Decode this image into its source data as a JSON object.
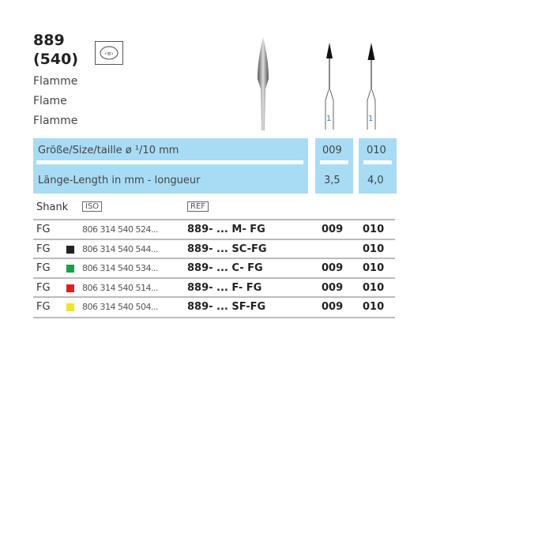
{
  "product": {
    "code": "889",
    "iso_code": "(540)",
    "names": [
      "Flamme",
      "Flame",
      "Flamme"
    ],
    "shape_icon": "flame-shape-icon"
  },
  "specs": {
    "size_label": "Größe/Size/taille ø ¹/10 mm",
    "length_label": "Länge-Length in mm - longueur",
    "sizes": [
      "009",
      "010"
    ],
    "lengths": [
      "3,5",
      "4,0"
    ],
    "instrument_marks": [
      "1",
      "1"
    ],
    "panel_color": "#a8dcf4"
  },
  "table": {
    "headers": {
      "shank": "Shank",
      "iso": "ISO",
      "ref": "REF"
    },
    "rows": [
      {
        "shank": "FG",
        "color": "",
        "iso": "806 314 540 524...",
        "ref": "889- ... M- FG",
        "s009": "009",
        "s010": "010"
      },
      {
        "shank": "FG",
        "color": "#222222",
        "iso": "806 314 540 544...",
        "ref": "889- ... SC-FG",
        "s009": "",
        "s010": "010"
      },
      {
        "shank": "FG",
        "color": "#1aa04a",
        "iso": "806 314 540 534...",
        "ref": "889- ... C- FG",
        "s009": "009",
        "s010": "010"
      },
      {
        "shank": "FG",
        "color": "#e02020",
        "iso": "806 314 540 514...",
        "ref": "889- ... F- FG",
        "s009": "009",
        "s010": "010"
      },
      {
        "shank": "FG",
        "color": "#f5e61a",
        "iso": "806 314 540 504...",
        "ref": "889- ... SF-FG",
        "s009": "009",
        "s010": "010"
      }
    ]
  }
}
